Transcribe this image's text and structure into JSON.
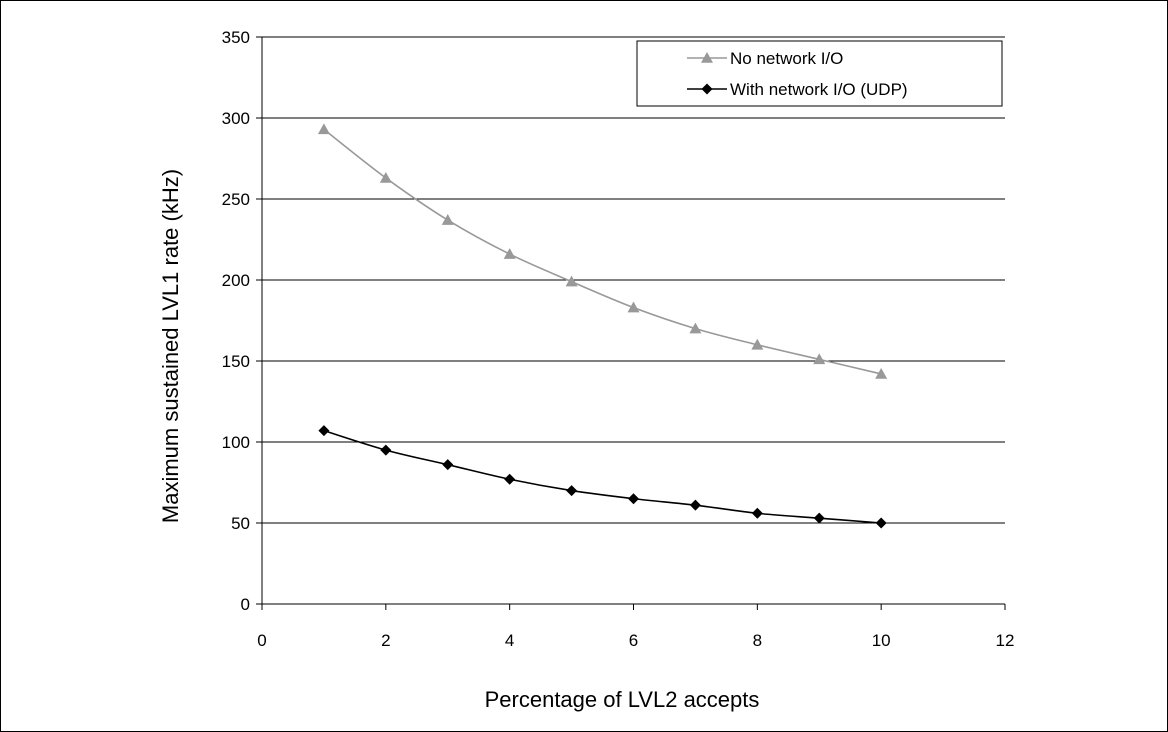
{
  "chart_data": {
    "type": "line",
    "xlabel": "Percentage of LVL2 accepts",
    "ylabel": "Maximum sustained LVL1 rate (kHz)",
    "xlim": [
      0,
      12
    ],
    "ylim": [
      0,
      350
    ],
    "xticks": [
      0,
      2,
      4,
      6,
      8,
      10,
      12
    ],
    "yticks": [
      0,
      50,
      100,
      150,
      200,
      250,
      300,
      350
    ],
    "grid": "horizontal",
    "legend_position": "top-right",
    "x": [
      1,
      2,
      3,
      4,
      5,
      6,
      7,
      8,
      9,
      10
    ],
    "series": [
      {
        "name": "No network I/O",
        "marker": "triangle",
        "color": "#999999",
        "values": [
          293,
          263,
          237,
          216,
          199,
          183,
          170,
          160,
          151,
          142
        ]
      },
      {
        "name": "With network I/O (UDP)",
        "marker": "diamond",
        "color": "#000000",
        "values": [
          107,
          95,
          86,
          77,
          70,
          65,
          61,
          56,
          53,
          50
        ]
      }
    ]
  }
}
